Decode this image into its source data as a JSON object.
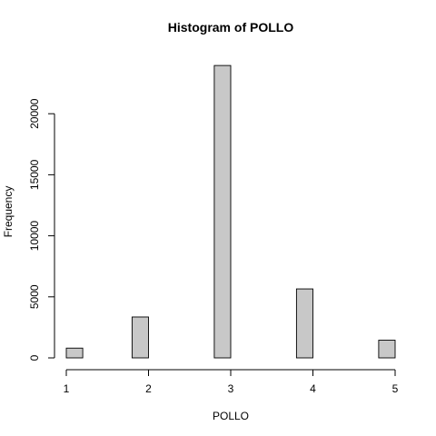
{
  "chart_data": {
    "type": "bar",
    "title": "Histogram of POLLO",
    "xlabel": "POLLO",
    "ylabel": "Frequency",
    "bins": [
      {
        "from": 1.0,
        "to": 1.2,
        "count": 800
      },
      {
        "from": 1.2,
        "to": 1.4,
        "count": 0
      },
      {
        "from": 1.4,
        "to": 1.6,
        "count": 0
      },
      {
        "from": 1.6,
        "to": 1.8,
        "count": 0
      },
      {
        "from": 1.8,
        "to": 2.0,
        "count": 3350
      },
      {
        "from": 2.0,
        "to": 2.2,
        "count": 0
      },
      {
        "from": 2.2,
        "to": 2.4,
        "count": 0
      },
      {
        "from": 2.4,
        "to": 2.6,
        "count": 0
      },
      {
        "from": 2.6,
        "to": 2.8,
        "count": 0
      },
      {
        "from": 2.8,
        "to": 3.0,
        "count": 23950
      },
      {
        "from": 3.0,
        "to": 3.2,
        "count": 0
      },
      {
        "from": 3.2,
        "to": 3.4,
        "count": 0
      },
      {
        "from": 3.4,
        "to": 3.6,
        "count": 0
      },
      {
        "from": 3.6,
        "to": 3.8,
        "count": 0
      },
      {
        "from": 3.8,
        "to": 4.0,
        "count": 5650
      },
      {
        "from": 4.0,
        "to": 4.2,
        "count": 0
      },
      {
        "from": 4.2,
        "to": 4.4,
        "count": 0
      },
      {
        "from": 4.4,
        "to": 4.6,
        "count": 0
      },
      {
        "from": 4.6,
        "to": 4.8,
        "count": 0
      },
      {
        "from": 4.8,
        "to": 5.0,
        "count": 1450
      }
    ],
    "xlim": [
      1,
      5
    ],
    "ylim": [
      0,
      25000
    ],
    "x_ticks": [
      "1",
      "2",
      "3",
      "4",
      "5"
    ],
    "y_ticks": [
      "0",
      "5000",
      "10000",
      "15000",
      "20000"
    ],
    "grid": false,
    "legend": "none",
    "colors": {
      "bar_fill": "#c8c8c8",
      "bar_stroke": "#000000"
    }
  }
}
